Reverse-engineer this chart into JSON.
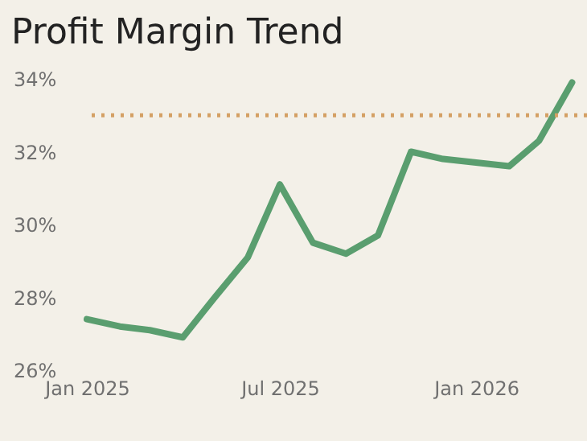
{
  "chart_data": {
    "type": "line",
    "title": "Profit Margin Trend",
    "x": [
      "2025-01",
      "2025-02",
      "2025-03",
      "2025-04",
      "2025-05",
      "2025-06",
      "2025-07",
      "2025-08",
      "2025-09",
      "2025-10",
      "2025-11",
      "2025-12",
      "2026-01",
      "2026-02",
      "2026-03",
      "2026-04"
    ],
    "series": [
      {
        "color": "#5a9e6f",
        "values": [
          27.4,
          27.2,
          27.1,
          26.9,
          28.0,
          29.1,
          31.1,
          29.5,
          29.2,
          29.7,
          32.0,
          31.8,
          31.7,
          31.6,
          32.3,
          33.9
        ]
      }
    ],
    "xlim": [
      "2025-01-01",
      "2026-04-15"
    ],
    "xticks": [
      {
        "value": "2025-01",
        "label": "Jan 2025"
      },
      {
        "value": "2025-07",
        "label": "Jul 2025"
      },
      {
        "value": "2026-01",
        "label": "Jan 2026"
      }
    ],
    "ylim": [
      26,
      34
    ],
    "yticks": [
      {
        "value": 26,
        "label": "26%"
      },
      {
        "value": 28,
        "label": "28%"
      },
      {
        "value": 30,
        "label": "30%"
      },
      {
        "value": 32,
        "label": "32%"
      },
      {
        "value": 34,
        "label": "34%"
      }
    ],
    "ref_lines": [
      {
        "axis": "y",
        "value": 33,
        "color": "#d4a064",
        "line_style": "dotted"
      }
    ],
    "grid": false,
    "marker": "none",
    "line_style": "solid"
  }
}
